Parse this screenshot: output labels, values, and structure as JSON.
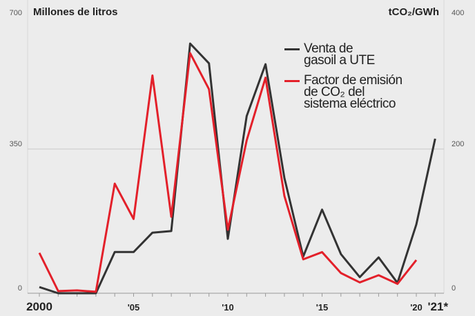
{
  "chart_data": {
    "type": "line",
    "y_label": "Millones de litros",
    "y2_label": "tCO₂/GWh",
    "categories": [
      "2000",
      null,
      null,
      null,
      null,
      "'05",
      null,
      null,
      null,
      null,
      "'10",
      null,
      null,
      null,
      null,
      "'15",
      null,
      null,
      null,
      null,
      "'20",
      "'21*"
    ],
    "series": [
      {
        "name": "Venta de gasoil a UTE",
        "color": "#333333",
        "values": [
          15,
          0,
          0,
          0,
          100,
          100,
          147,
          151,
          606,
          558,
          132,
          430,
          556,
          280,
          89,
          203,
          95,
          39,
          87,
          25,
          167,
          375
        ]
      },
      {
        "name": "Factor de emisión de CO₂ del sistema eléctrico",
        "color": "#e3202a",
        "axis": "y2",
        "values": [
          56,
          3,
          4,
          2,
          152,
          103,
          302,
          106,
          333,
          283,
          88,
          212,
          299,
          135,
          47,
          57,
          28,
          15,
          25,
          13,
          46,
          null
        ]
      }
    ],
    "ylim": [
      0,
      700
    ],
    "yticks": [
      0,
      350,
      700
    ],
    "y2lim": [
      0,
      400
    ],
    "y2ticks": [
      0,
      200,
      400
    ],
    "grid": true
  }
}
